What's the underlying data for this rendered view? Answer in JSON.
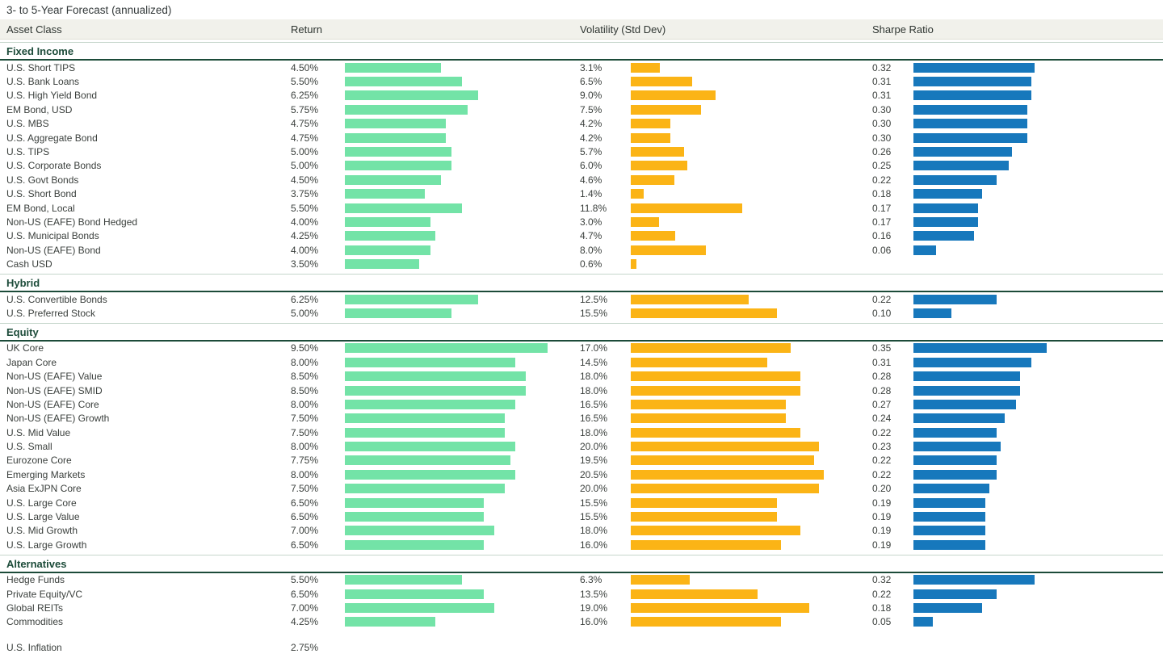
{
  "page_title": "3- to 5-Year Forecast (annualized)",
  "columns": {
    "asset_class": "Asset Class",
    "return": "Return",
    "volatility": "Volatility (Std Dev)",
    "sharpe": "Sharpe Ratio"
  },
  "colors": {
    "return_bar": "#73e3a7",
    "volatility_bar": "#fbb416",
    "sharpe_bar": "#1778bc",
    "section_heading": "#1c4b39",
    "header_band_bg": "#f1f1eb"
  },
  "chart_data": {
    "type": "bar",
    "orientation": "horizontal",
    "title": "3- to 5-Year Forecast (annualized)",
    "value_columns": [
      "Return",
      "Volatility (Std Dev)",
      "Sharpe Ratio"
    ],
    "axis_hints": {
      "return_pct_max": 10.6,
      "volatility_pct_max": 24.0,
      "sharpe_max": 0.66,
      "grid": false,
      "legend": false
    },
    "sections": [
      {
        "name": "Fixed Income",
        "rows": [
          {
            "asset": "U.S. Short TIPS",
            "return": "4.50%",
            "return_value": 4.5,
            "volatility": "3.1%",
            "volatility_value": 3.1,
            "sharpe": "0.32",
            "sharpe_value": 0.32
          },
          {
            "asset": "U.S. Bank Loans",
            "return": "5.50%",
            "return_value": 5.5,
            "volatility": "6.5%",
            "volatility_value": 6.5,
            "sharpe": "0.31",
            "sharpe_value": 0.31
          },
          {
            "asset": "U.S. High Yield Bond",
            "return": "6.25%",
            "return_value": 6.25,
            "volatility": "9.0%",
            "volatility_value": 9.0,
            "sharpe": "0.31",
            "sharpe_value": 0.31
          },
          {
            "asset": "EM Bond, USD",
            "return": "5.75%",
            "return_value": 5.75,
            "volatility": "7.5%",
            "volatility_value": 7.5,
            "sharpe": "0.30",
            "sharpe_value": 0.3
          },
          {
            "asset": "U.S. MBS",
            "return": "4.75%",
            "return_value": 4.75,
            "volatility": "4.2%",
            "volatility_value": 4.2,
            "sharpe": "0.30",
            "sharpe_value": 0.3
          },
          {
            "asset": "U.S. Aggregate Bond",
            "return": "4.75%",
            "return_value": 4.75,
            "volatility": "4.2%",
            "volatility_value": 4.2,
            "sharpe": "0.30",
            "sharpe_value": 0.3
          },
          {
            "asset": "U.S. TIPS",
            "return": "5.00%",
            "return_value": 5.0,
            "volatility": "5.7%",
            "volatility_value": 5.7,
            "sharpe": "0.26",
            "sharpe_value": 0.26
          },
          {
            "asset": "U.S. Corporate Bonds",
            "return": "5.00%",
            "return_value": 5.0,
            "volatility": "6.0%",
            "volatility_value": 6.0,
            "sharpe": "0.25",
            "sharpe_value": 0.25
          },
          {
            "asset": "U.S. Govt Bonds",
            "return": "4.50%",
            "return_value": 4.5,
            "volatility": "4.6%",
            "volatility_value": 4.6,
            "sharpe": "0.22",
            "sharpe_value": 0.22
          },
          {
            "asset": "U.S. Short Bond",
            "return": "3.75%",
            "return_value": 3.75,
            "volatility": "1.4%",
            "volatility_value": 1.4,
            "sharpe": "0.18",
            "sharpe_value": 0.18
          },
          {
            "asset": "EM Bond, Local",
            "return": "5.50%",
            "return_value": 5.5,
            "volatility": "11.8%",
            "volatility_value": 11.8,
            "sharpe": "0.17",
            "sharpe_value": 0.17
          },
          {
            "asset": "Non-US (EAFE) Bond Hedged",
            "return": "4.00%",
            "return_value": 4.0,
            "volatility": "3.0%",
            "volatility_value": 3.0,
            "sharpe": "0.17",
            "sharpe_value": 0.17
          },
          {
            "asset": "U.S. Municipal Bonds",
            "return": "4.25%",
            "return_value": 4.25,
            "volatility": "4.7%",
            "volatility_value": 4.7,
            "sharpe": "0.16",
            "sharpe_value": 0.16
          },
          {
            "asset": "Non-US (EAFE) Bond",
            "return": "4.00%",
            "return_value": 4.0,
            "volatility": "8.0%",
            "volatility_value": 8.0,
            "sharpe": "0.06",
            "sharpe_value": 0.06
          },
          {
            "asset": "Cash USD",
            "return": "3.50%",
            "return_value": 3.5,
            "volatility": "0.6%",
            "volatility_value": 0.6,
            "sharpe": "",
            "sharpe_value": null
          }
        ]
      },
      {
        "name": "Hybrid",
        "rows": [
          {
            "asset": "U.S. Convertible Bonds",
            "return": "6.25%",
            "return_value": 6.25,
            "volatility": "12.5%",
            "volatility_value": 12.5,
            "sharpe": "0.22",
            "sharpe_value": 0.22
          },
          {
            "asset": "U.S. Preferred Stock",
            "return": "5.00%",
            "return_value": 5.0,
            "volatility": "15.5%",
            "volatility_value": 15.5,
            "sharpe": "0.10",
            "sharpe_value": 0.1
          }
        ]
      },
      {
        "name": "Equity",
        "rows": [
          {
            "asset": "UK Core",
            "return": "9.50%",
            "return_value": 9.5,
            "volatility": "17.0%",
            "volatility_value": 17.0,
            "sharpe": "0.35",
            "sharpe_value": 0.35
          },
          {
            "asset": "Japan Core",
            "return": "8.00%",
            "return_value": 8.0,
            "volatility": "14.5%",
            "volatility_value": 14.5,
            "sharpe": "0.31",
            "sharpe_value": 0.31
          },
          {
            "asset": "Non-US (EAFE) Value",
            "return": "8.50%",
            "return_value": 8.5,
            "volatility": "18.0%",
            "volatility_value": 18.0,
            "sharpe": "0.28",
            "sharpe_value": 0.28
          },
          {
            "asset": "Non-US (EAFE) SMID",
            "return": "8.50%",
            "return_value": 8.5,
            "volatility": "18.0%",
            "volatility_value": 18.0,
            "sharpe": "0.28",
            "sharpe_value": 0.28
          },
          {
            "asset": "Non-US (EAFE) Core",
            "return": "8.00%",
            "return_value": 8.0,
            "volatility": "16.5%",
            "volatility_value": 16.5,
            "sharpe": "0.27",
            "sharpe_value": 0.27
          },
          {
            "asset": "Non-US (EAFE) Growth",
            "return": "7.50%",
            "return_value": 7.5,
            "volatility": "16.5%",
            "volatility_value": 16.5,
            "sharpe": "0.24",
            "sharpe_value": 0.24
          },
          {
            "asset": "U.S. Mid Value",
            "return": "7.50%",
            "return_value": 7.5,
            "volatility": "18.0%",
            "volatility_value": 18.0,
            "sharpe": "0.22",
            "sharpe_value": 0.22
          },
          {
            "asset": "U.S. Small",
            "return": "8.00%",
            "return_value": 8.0,
            "volatility": "20.0%",
            "volatility_value": 20.0,
            "sharpe": "0.23",
            "sharpe_value": 0.23
          },
          {
            "asset": "Eurozone Core",
            "return": "7.75%",
            "return_value": 7.75,
            "volatility": "19.5%",
            "volatility_value": 19.5,
            "sharpe": "0.22",
            "sharpe_value": 0.22
          },
          {
            "asset": "Emerging Markets",
            "return": "8.00%",
            "return_value": 8.0,
            "volatility": "20.5%",
            "volatility_value": 20.5,
            "sharpe": "0.22",
            "sharpe_value": 0.22
          },
          {
            "asset": "Asia ExJPN Core",
            "return": "7.50%",
            "return_value": 7.5,
            "volatility": "20.0%",
            "volatility_value": 20.0,
            "sharpe": "0.20",
            "sharpe_value": 0.2
          },
          {
            "asset": "U.S. Large Core",
            "return": "6.50%",
            "return_value": 6.5,
            "volatility": "15.5%",
            "volatility_value": 15.5,
            "sharpe": "0.19",
            "sharpe_value": 0.19
          },
          {
            "asset": "U.S. Large Value",
            "return": "6.50%",
            "return_value": 6.5,
            "volatility": "15.5%",
            "volatility_value": 15.5,
            "sharpe": "0.19",
            "sharpe_value": 0.19
          },
          {
            "asset": "U.S. Mid Growth",
            "return": "7.00%",
            "return_value": 7.0,
            "volatility": "18.0%",
            "volatility_value": 18.0,
            "sharpe": "0.19",
            "sharpe_value": 0.19
          },
          {
            "asset": "U.S. Large Growth",
            "return": "6.50%",
            "return_value": 6.5,
            "volatility": "16.0%",
            "volatility_value": 16.0,
            "sharpe": "0.19",
            "sharpe_value": 0.19
          }
        ]
      },
      {
        "name": "Alternatives",
        "rows": [
          {
            "asset": "Hedge Funds",
            "return": "5.50%",
            "return_value": 5.5,
            "volatility": "6.3%",
            "volatility_value": 6.3,
            "sharpe": "0.32",
            "sharpe_value": 0.32
          },
          {
            "asset": "Private Equity/VC",
            "return": "6.50%",
            "return_value": 6.5,
            "volatility": "13.5%",
            "volatility_value": 13.5,
            "sharpe": "0.22",
            "sharpe_value": 0.22
          },
          {
            "asset": "Global REITs",
            "return": "7.00%",
            "return_value": 7.0,
            "volatility": "19.0%",
            "volatility_value": 19.0,
            "sharpe": "0.18",
            "sharpe_value": 0.18
          },
          {
            "asset": "Commodities",
            "return": "4.25%",
            "return_value": 4.25,
            "volatility": "16.0%",
            "volatility_value": 16.0,
            "sharpe": "0.05",
            "sharpe_value": 0.05
          }
        ]
      }
    ],
    "footer": {
      "label": "U.S. Inflation",
      "return": "2.75%"
    }
  }
}
